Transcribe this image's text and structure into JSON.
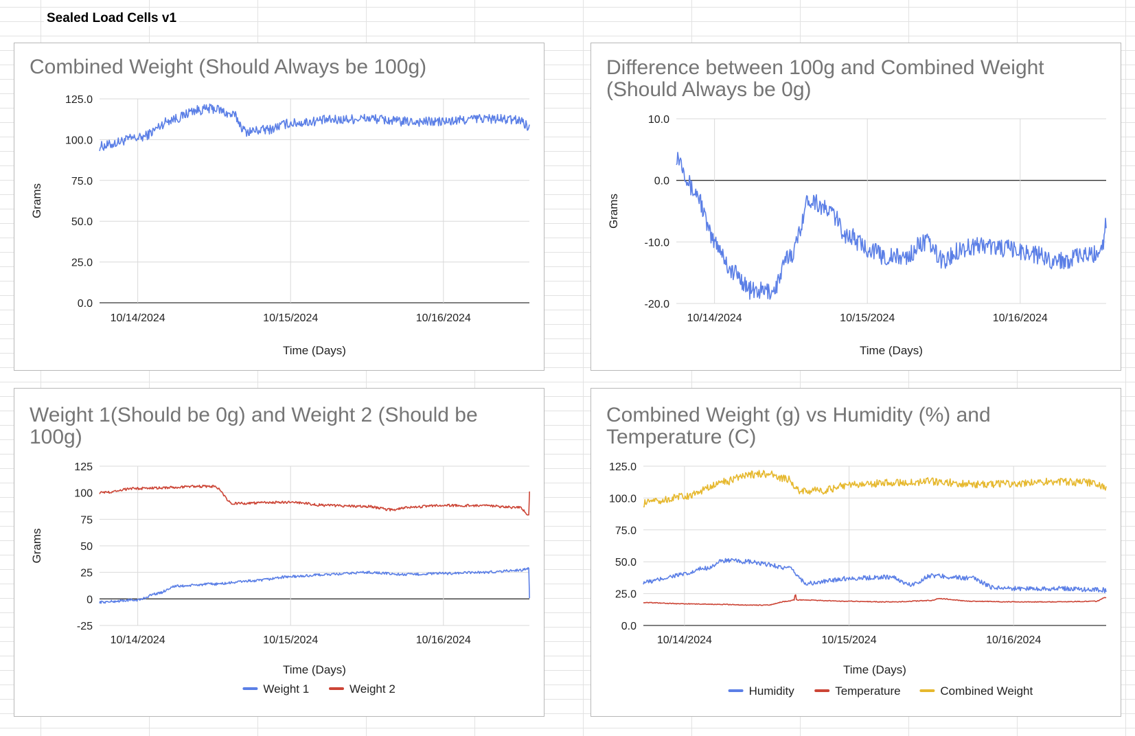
{
  "sheet": {
    "title": "Sealed Load Cells v1"
  },
  "colors": {
    "blue": "#5b7fe6",
    "red": "#cc4536",
    "yellow": "#e6b82e",
    "grid": "#d9d9d9",
    "zero_line": "#333333"
  },
  "chart_data": [
    {
      "type": "line",
      "title": "Combined Weight (Should Always be 100g)",
      "xlabel": "Time (Days)",
      "ylabel": "Grams",
      "x_tick_labels": [
        "10/14/2024",
        "10/15/2024",
        "10/16/2024"
      ],
      "y_tick_labels": [
        "125.0",
        "100.0",
        "75.0",
        "50.0",
        "25.0",
        "0.0"
      ],
      "ylim": [
        0,
        125
      ],
      "grid": true,
      "legend": "none",
      "series": [
        {
          "color": "#5b7fe6",
          "noise": 3,
          "x": [
            "10/13 18:00",
            "10/14 00:00",
            "10/14 06:00",
            "10/14 09:00",
            "10/14 12:00",
            "10/14 15:00",
            "10/14 17:00",
            "10/14 20:00",
            "10/15 00:00",
            "10/15 06:00",
            "10/15 12:00",
            "10/15 18:00",
            "10/16 00:00",
            "10/16 06:00",
            "10/16 12:00",
            "10/16 13:30"
          ],
          "y": [
            96,
            101,
            113,
            118,
            119,
            115,
            105,
            106,
            110,
            112,
            113,
            111,
            111,
            113,
            112,
            108
          ]
        }
      ]
    },
    {
      "type": "line",
      "title": "Difference between 100g and Combined Weight (Should Always be 0g)",
      "xlabel": "Time (Days)",
      "ylabel": "Grams",
      "x_tick_labels": [
        "10/14/2024",
        "10/15/2024",
        "10/16/2024"
      ],
      "y_tick_labels": [
        "10.0",
        "0.0",
        "-10.0",
        "-20.0"
      ],
      "ylim": [
        -20,
        10
      ],
      "grid": true,
      "legend": "none",
      "series": [
        {
          "color": "#5b7fe6",
          "noise": 1.5,
          "x": [
            "10/13 18:00",
            "10/13 21:00",
            "10/14 00:00",
            "10/14 03:00",
            "10/14 06:00",
            "10/14 09:00",
            "10/14 12:00",
            "10/14 15:00",
            "10/14 18:00",
            "10/14 21:00",
            "10/15 00:00",
            "10/15 03:00",
            "10/15 06:00",
            "10/15 09:00",
            "10/15 12:00",
            "10/15 15:00",
            "10/15 18:00",
            "10/15 21:00",
            "10/16 00:00",
            "10/16 06:00",
            "10/16 12:00",
            "10/16 13:00",
            "10/16 13:30"
          ],
          "y": [
            4,
            -2,
            -10,
            -15,
            -18,
            -18,
            -12,
            -3,
            -5,
            -9,
            -11,
            -12.5,
            -12.5,
            -10,
            -13,
            -11,
            -10.5,
            -11,
            -11.5,
            -13,
            -12,
            -10,
            -7
          ]
        }
      ]
    },
    {
      "type": "line",
      "title": "Weight 1(Should be 0g) and Weight 2 (Should be 100g)",
      "xlabel": "Time (Days)",
      "ylabel": "Grams",
      "x_tick_labels": [
        "10/14/2024",
        "10/15/2024",
        "10/16/2024"
      ],
      "y_tick_labels": [
        "125",
        "100",
        "75",
        "50",
        "25",
        "0",
        "-25"
      ],
      "ylim": [
        -25,
        125
      ],
      "grid": true,
      "legend": "bottom",
      "series": [
        {
          "name": "Weight 1",
          "color": "#5b7fe6",
          "noise": 1.2,
          "x": [
            "10/13 18:00",
            "10/14 00:00",
            "10/14 03:00",
            "10/14 06:00",
            "10/14 12:00",
            "10/14 18:00",
            "10/15 00:00",
            "10/15 06:00",
            "10/15 12:00",
            "10/15 18:00",
            "10/16 00:00",
            "10/16 06:00",
            "10/16 12:00",
            "10/16 13:30",
            "10/16 13:31"
          ],
          "y": [
            -3,
            -1,
            5,
            12,
            14,
            17,
            21,
            23,
            25,
            23,
            24,
            25,
            27,
            29,
            0
          ]
        },
        {
          "name": "Weight 2",
          "color": "#cc4536",
          "noise": 1.2,
          "x": [
            "10/13 18:00",
            "10/14 00:00",
            "10/14 06:00",
            "10/14 09:00",
            "10/14 12:00",
            "10/14 15:00",
            "10/15 00:00",
            "10/15 06:00",
            "10/15 12:00",
            "10/15 16:00",
            "10/15 18:00",
            "10/16 00:00",
            "10/16 06:00",
            "10/16 12:00",
            "10/16 13:30",
            "10/16 13:31"
          ],
          "y": [
            100,
            104,
            105,
            106,
            106,
            90,
            91,
            88,
            87,
            84,
            86,
            88,
            88,
            86,
            79,
            100
          ]
        }
      ]
    },
    {
      "type": "line",
      "title": "Combined Weight (g) vs Humidity (%) and Temperature (C)",
      "xlabel": "Time (Days)",
      "ylabel": "",
      "x_tick_labels": [
        "10/14/2024",
        "10/15/2024",
        "10/16/2024"
      ],
      "y_tick_labels": [
        "125.0",
        "100.0",
        "75.0",
        "50.0",
        "25.0",
        "0.0"
      ],
      "ylim": [
        0,
        125
      ],
      "grid": true,
      "legend": "bottom",
      "series": [
        {
          "name": "Humidity",
          "color": "#5b7fe6",
          "noise": 1.8,
          "x": [
            "10/13 18:00",
            "10/14 00:00",
            "10/14 03:00",
            "10/14 06:00",
            "10/14 09:00",
            "10/14 12:00",
            "10/14 15:00",
            "10/14 18:00",
            "10/15 00:00",
            "10/15 06:00",
            "10/15 09:00",
            "10/15 12:00",
            "10/15 18:00",
            "10/15 21:00",
            "10/16 00:00",
            "10/16 06:00",
            "10/16 13:00",
            "10/16 13:30"
          ],
          "y": [
            34,
            40,
            45,
            51,
            50,
            48,
            45,
            33,
            37,
            38,
            32,
            39,
            37,
            30,
            29,
            29,
            28,
            27
          ]
        },
        {
          "name": "Temperature",
          "color": "#cc4536",
          "noise": 0.3,
          "x": [
            "10/13 18:00",
            "10/14 00:00",
            "10/14 06:00",
            "10/14 09:00",
            "10/14 12:00",
            "10/14 15:00",
            "10/14 16:00",
            "10/14 16:10",
            "10/14 16:20",
            "10/15 00:00",
            "10/15 06:00",
            "10/15 12:00",
            "10/15 13:00",
            "10/15 18:00",
            "10/16 00:00",
            "10/16 06:00",
            "10/16 12:00",
            "10/16 13:30"
          ],
          "y": [
            18,
            17,
            16.5,
            16,
            16,
            19,
            20,
            25,
            20,
            19,
            18.5,
            19.5,
            21,
            19,
            18.5,
            18.5,
            19,
            22
          ]
        },
        {
          "name": "Combined Weight",
          "color": "#e6b82e",
          "noise": 3,
          "x": [
            "10/13 18:00",
            "10/14 00:00",
            "10/14 06:00",
            "10/14 09:00",
            "10/14 12:00",
            "10/14 15:00",
            "10/14 17:00",
            "10/14 20:00",
            "10/15 00:00",
            "10/15 06:00",
            "10/15 12:00",
            "10/15 18:00",
            "10/16 00:00",
            "10/16 06:00",
            "10/16 12:00",
            "10/16 13:30"
          ],
          "y": [
            96,
            101,
            113,
            118,
            119,
            115,
            105,
            106,
            110,
            112,
            113,
            111,
            111,
            113,
            112,
            108
          ]
        }
      ]
    }
  ]
}
